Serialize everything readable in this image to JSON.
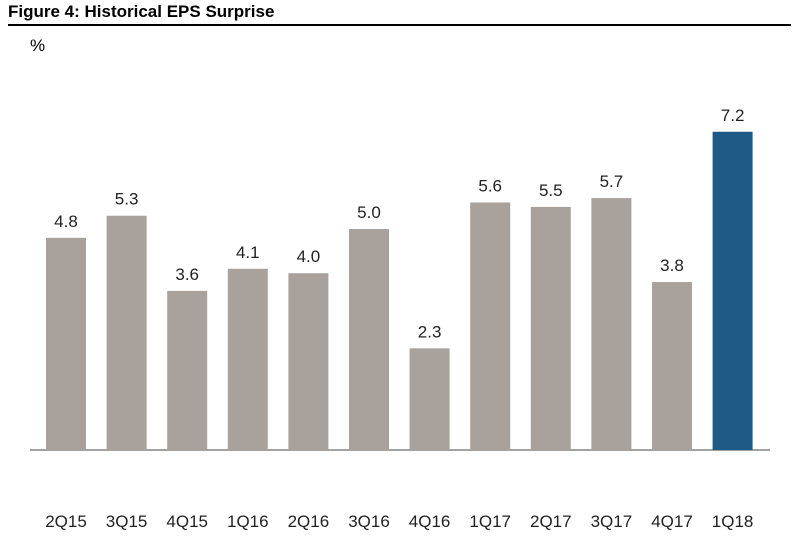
{
  "figure": {
    "title": "Figure 4: Historical EPS Surprise",
    "unit_label": "%"
  },
  "chart_data": {
    "type": "bar",
    "title": "Figure 4: Historical EPS Surprise",
    "ylabel": "%",
    "xlabel": "",
    "ylim": [
      0,
      8
    ],
    "grid": false,
    "categories": [
      "2Q15",
      "3Q15",
      "4Q15",
      "1Q16",
      "2Q16",
      "3Q16",
      "4Q16",
      "1Q17",
      "2Q17",
      "3Q17",
      "4Q17",
      "1Q18"
    ],
    "values": [
      4.8,
      5.3,
      3.6,
      4.1,
      4.0,
      5.0,
      2.3,
      5.6,
      5.5,
      5.7,
      3.8,
      7.2
    ],
    "value_labels": [
      "4.8",
      "5.3",
      "3.6",
      "4.1",
      "4.0",
      "5.0",
      "2.3",
      "5.6",
      "5.5",
      "5.7",
      "3.8",
      "7.2"
    ],
    "colors": {
      "default": "#A9A19B",
      "highlight": "#1F5A87",
      "axis": "#444444"
    },
    "highlight_index": 11
  }
}
